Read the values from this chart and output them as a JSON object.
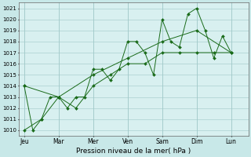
{
  "xlabel": "Pression niveau de la mer( hPa )",
  "background_color": "#c8e8e8",
  "plot_bg_color": "#d8f0f0",
  "grid_color": "#a0c8c8",
  "line_color": "#1a6b1a",
  "ylim": [
    1009.5,
    1021.5
  ],
  "yticks": [
    1010,
    1011,
    1012,
    1013,
    1014,
    1015,
    1016,
    1017,
    1018,
    1019,
    1020,
    1021
  ],
  "x_labels": [
    "Jeu",
    "Mar",
    "Mer",
    "Ven",
    "Sam",
    "Dim",
    "Lun"
  ],
  "x_positions": [
    0,
    2,
    4,
    6,
    8,
    10,
    12
  ],
  "x_vlines": [
    0,
    2,
    4,
    6,
    8,
    10,
    12
  ],
  "xlim": [
    -0.3,
    13.0
  ],
  "line1_x": [
    0,
    0.5,
    1,
    1.5,
    2,
    2.5,
    3,
    3.5,
    4,
    4.5,
    5,
    5.5,
    6,
    6.5,
    7,
    7.5,
    8,
    8.5,
    9,
    9.5,
    10,
    10.5,
    11,
    11.5,
    12
  ],
  "line1_y": [
    1014,
    1010,
    1011,
    1013,
    1013,
    1012,
    1013,
    1013,
    1015.5,
    1015.5,
    1014.5,
    1015.5,
    1018,
    1018,
    1017,
    1015,
    1020,
    1018,
    1017.5,
    1020.5,
    1021,
    1019,
    1016.5,
    1018.5,
    1017
  ],
  "line2_x": [
    0,
    1,
    2,
    3,
    4,
    5,
    6,
    7,
    8,
    9,
    10,
    11,
    12
  ],
  "line2_y": [
    1010,
    1011,
    1013,
    1012,
    1014,
    1015,
    1016,
    1016,
    1017,
    1017,
    1017,
    1017,
    1017
  ],
  "line3_x": [
    0,
    2,
    4,
    6,
    8,
    10,
    12
  ],
  "line3_y": [
    1014,
    1013,
    1015,
    1016.5,
    1018,
    1019,
    1017
  ],
  "figsize": [
    3.2,
    2.0
  ],
  "dpi": 100
}
